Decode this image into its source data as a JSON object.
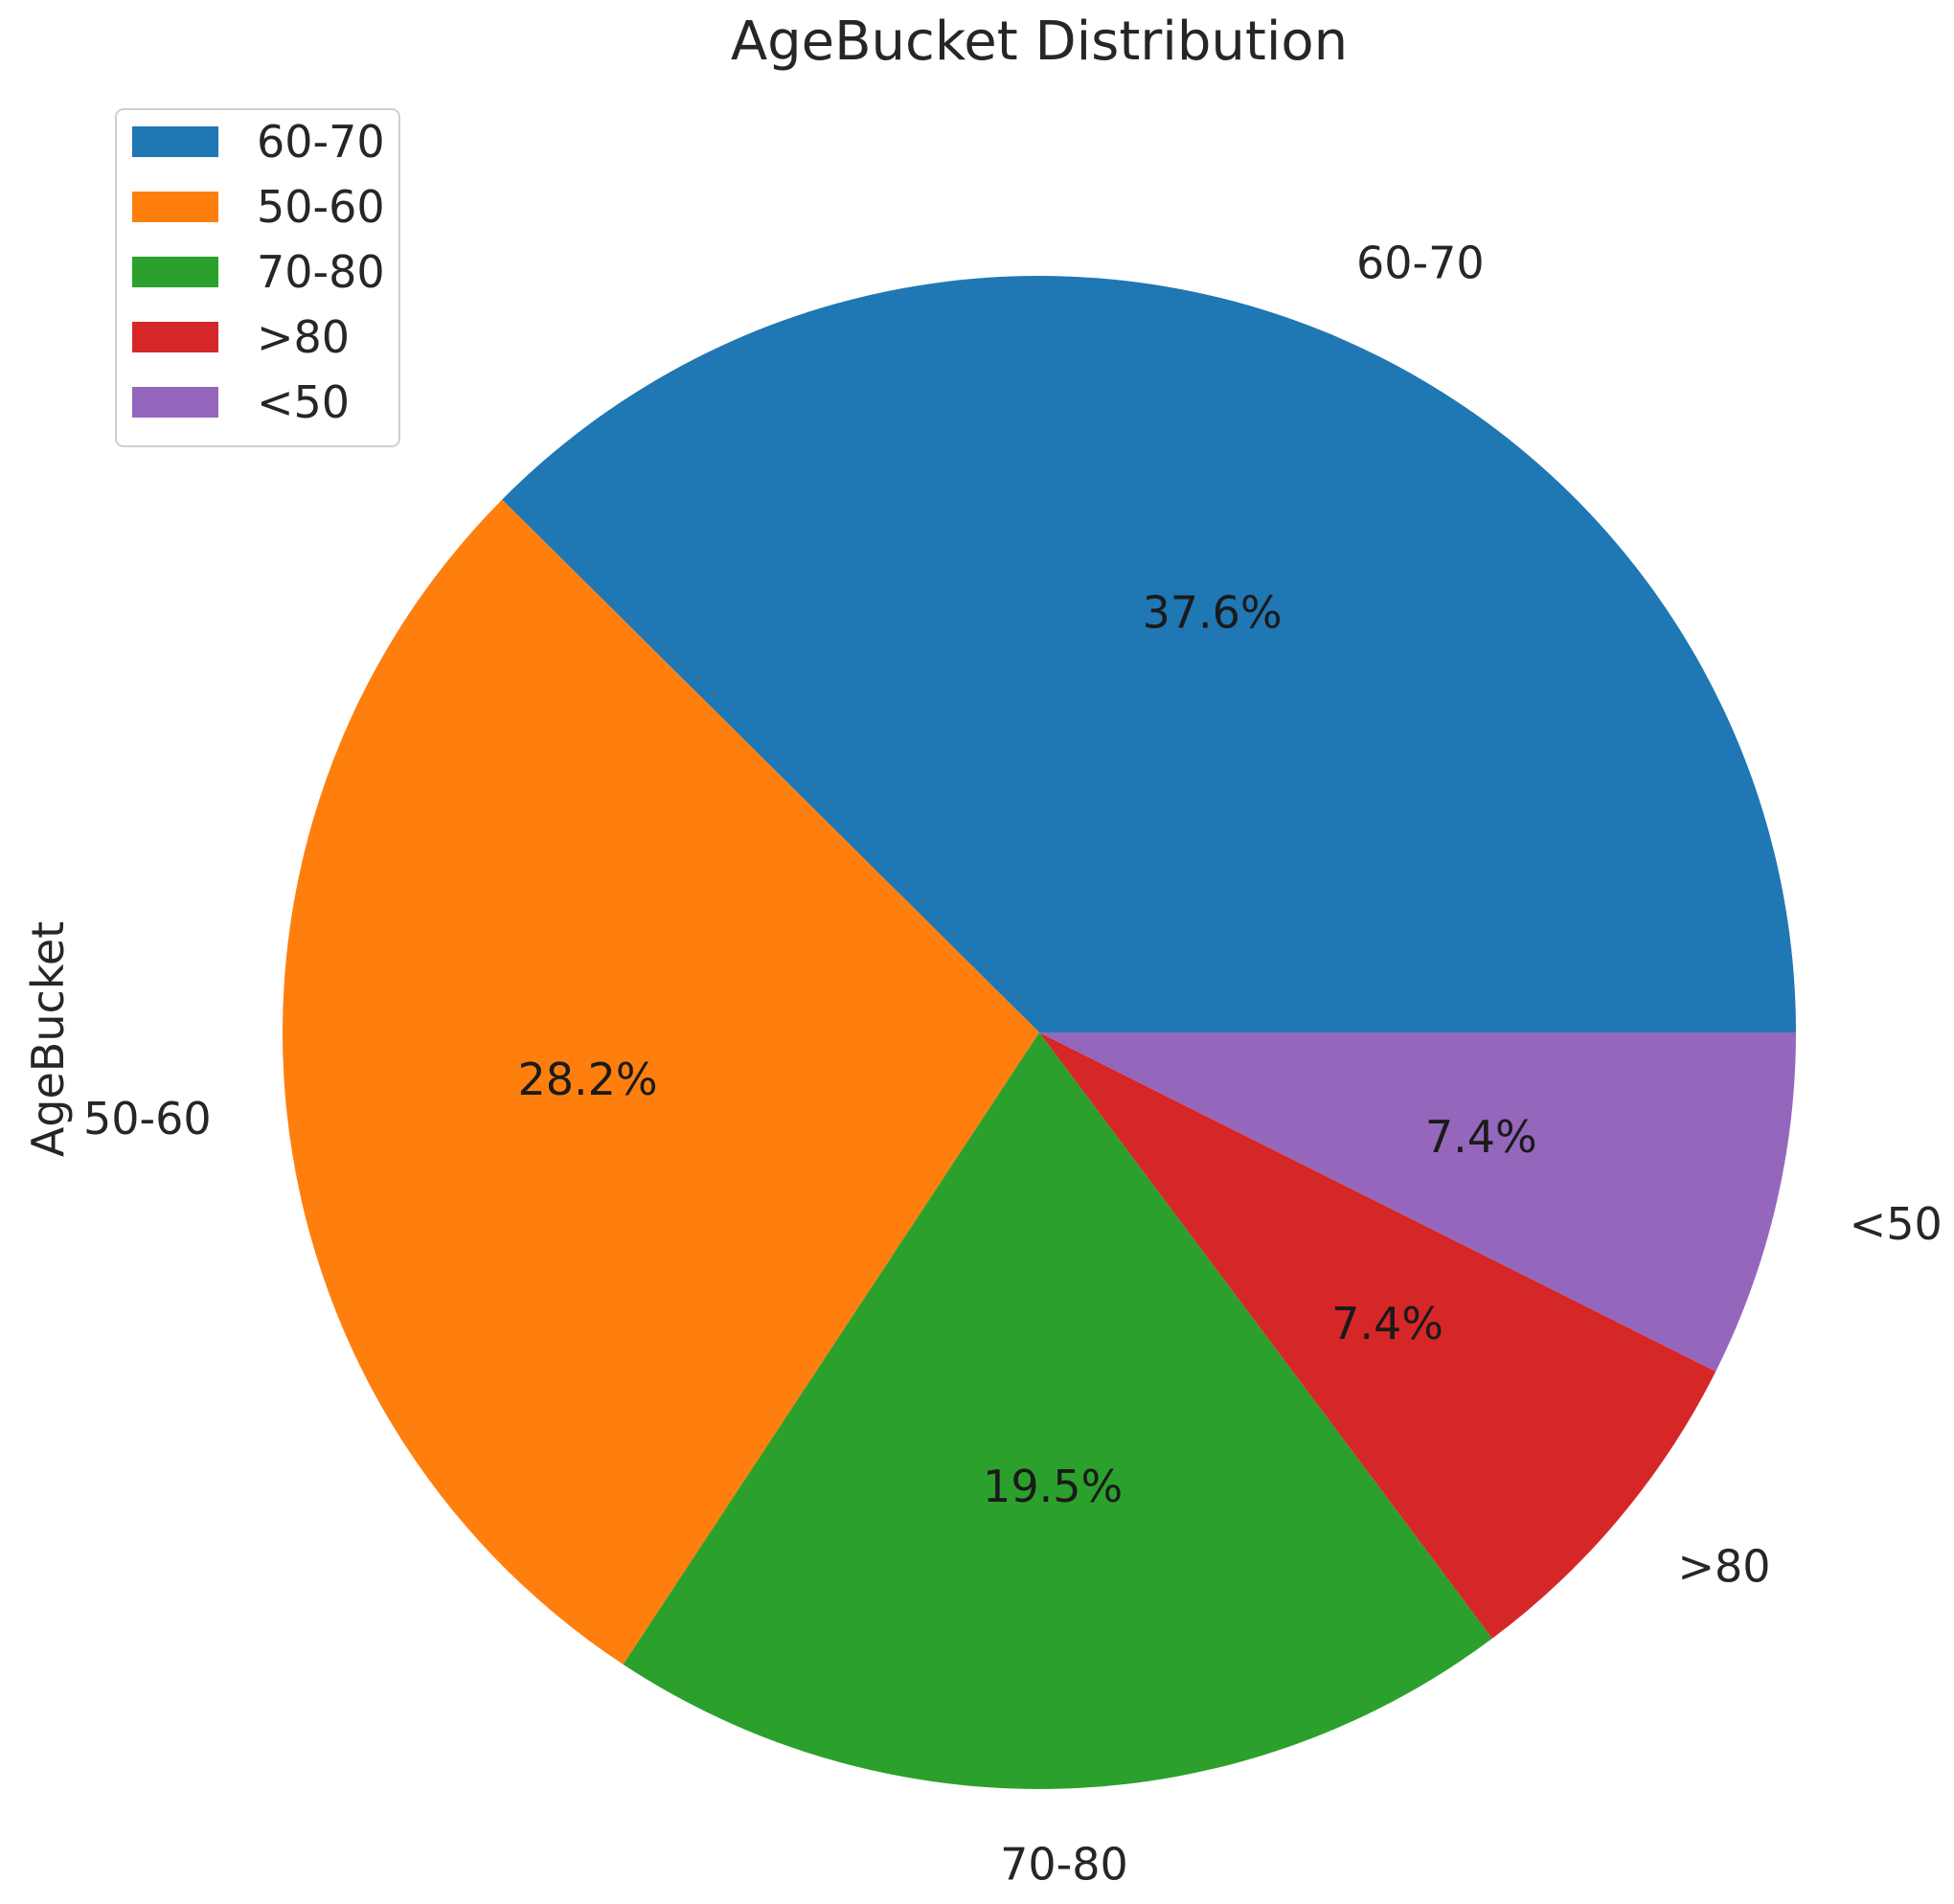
{
  "chart_data": {
    "type": "pie",
    "title": "AgeBucket Distribution",
    "ylabel": "AgeBucket",
    "legend_position": "top-left",
    "start_angle_deg": 0,
    "direction": "counterclockwise",
    "slices": [
      {
        "label": "60-70",
        "value": 37.6,
        "pct_label": "37.6%",
        "color": "#1f77b4"
      },
      {
        "label": "50-60",
        "value": 28.2,
        "pct_label": "28.2%",
        "color": "#ff7f0e"
      },
      {
        "label": "70-80",
        "value": 19.5,
        "pct_label": "19.5%",
        "color": "#2ca02c"
      },
      {
        "label": ">80",
        "value": 7.4,
        "pct_label": "7.4%",
        "color": "#d62728"
      },
      {
        "label": "<50",
        "value": 7.4,
        "pct_label": "7.4%",
        "color": "#9467bd"
      }
    ]
  }
}
